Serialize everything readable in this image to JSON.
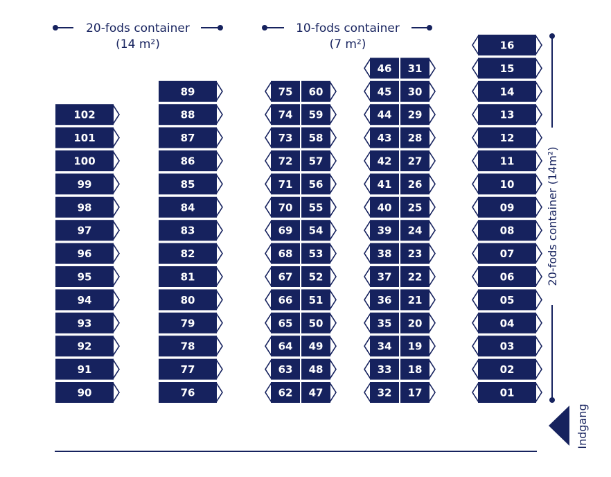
{
  "legend": {
    "twenty": {
      "title": "20-fods container",
      "area": "(14 m²)"
    },
    "ten": {
      "title": "10-fods container",
      "area": "(7 m²)"
    },
    "right_vertical": "20-fods container (14m²)"
  },
  "entrance_label": "Indgang",
  "colors": {
    "container": "#16225e",
    "text": "#ffffff",
    "line": "#16225e"
  },
  "rows": {
    "col1": [
      "102",
      "101",
      "100",
      "99",
      "98",
      "97",
      "96",
      "95",
      "94",
      "93",
      "92",
      "91",
      "90"
    ],
    "col2": [
      "89",
      "88",
      "87",
      "86",
      "85",
      "84",
      "83",
      "82",
      "81",
      "80",
      "79",
      "78",
      "77",
      "76"
    ],
    "col3_left": [
      "75",
      "74",
      "73",
      "72",
      "71",
      "70",
      "69",
      "68",
      "67",
      "66",
      "65",
      "64",
      "63",
      "62"
    ],
    "col3_right": [
      "60",
      "59",
      "58",
      "57",
      "56",
      "55",
      "54",
      "53",
      "52",
      "51",
      "50",
      "49",
      "48",
      "47"
    ],
    "col4_left": [
      "46",
      "45",
      "44",
      "43",
      "42",
      "41",
      "40",
      "39",
      "38",
      "37",
      "36",
      "35",
      "34",
      "33",
      "32"
    ],
    "col4_right": [
      "31",
      "30",
      "29",
      "28",
      "27",
      "26",
      "25",
      "24",
      "23",
      "22",
      "21",
      "20",
      "19",
      "18",
      "17"
    ],
    "col5": [
      "16",
      "15",
      "14",
      "13",
      "12",
      "11",
      "10",
      "09",
      "08",
      "07",
      "06",
      "05",
      "04",
      "03",
      "02",
      "01"
    ]
  }
}
